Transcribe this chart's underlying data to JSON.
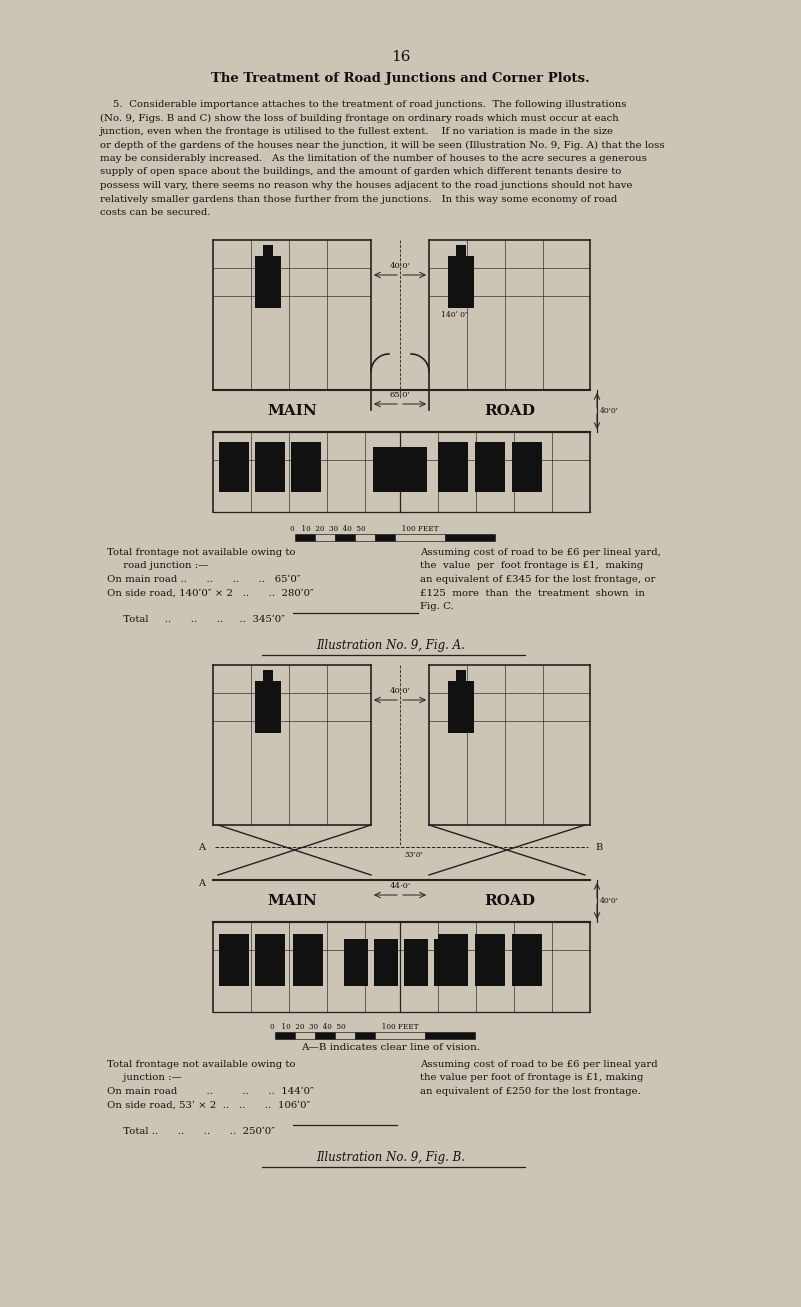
{
  "page_number": "16",
  "title": "The Treatment of Road Junctions and Corner Plots.",
  "body_text": "    5.  Considerable importance attaches to the treatment of road junctions.  The following illustrations\n(No. 9, Figs. B and C) show the loss of building frontage on ordinary roads which must occur at each\njunction, even when the frontage is utilised to the fullest extent.    If no variation is made in the size\nor depth of the gardens of the houses near the junction, it will be seen (Illustration No. 9, Fig. A) that the loss\nmay be considerably increased.   As the limitation of the number of houses to the acre secures a generous\nsupply of open space about the buildings, and the amount of garden which different tenants desire to\npossess will vary, there seems no reason why the houses adjacent to the road junctions should not have\nrelatively smaller gardens than those further from the junctions.   In this way some economy of road\ncosts can be secured.",
  "bg_color": "#ccc4b4",
  "line_color": "#222222",
  "house_color": "#111111",
  "text_color": "#111111",
  "fig_a_caption": "Illustration No. 9, Fig. A.",
  "fig_b_caption": "Illustration No. 9, Fig. B.",
  "fig_a_text_left_1": "Total frontage not available owing to",
  "fig_a_text_left_2": "     road junction :—",
  "fig_a_text_left_3": "On main road ..      ..      ..      ..   65ʹ0″",
  "fig_a_text_left_4": "On side road, 140ʹ0″ × 2   ..      ..  280ʹ0″",
  "fig_a_text_left_5": "",
  "fig_a_text_left_6": "     Total     ..      ..      ..     ..  345ʹ0″",
  "fig_a_text_right_1": "Assuming cost of road to be £6 per lineal yard,",
  "fig_a_text_right_2": "the  value  per  foot frontage is £1,  making",
  "fig_a_text_right_3": "an equivalent of £345 for the lost frontage, or",
  "fig_a_text_right_4": "£125  more  than  the  treatment  shown  in",
  "fig_a_text_right_5": "Fig. C.",
  "fig_b_text_left_1": "Total frontage not available owing to",
  "fig_b_text_left_2": "     junction :—",
  "fig_b_text_left_3": "On main road         ..         ..      ..  144ʹ0″",
  "fig_b_text_left_4": "On side road, 53ʹ × 2  ..   ..      ..  106ʹ0″",
  "fig_b_text_left_5": "",
  "fig_b_text_left_6": "     Total ..      ..      ..      ..  250ʹ0″",
  "fig_b_text_right_1": "Assuming cost of road to be £6 per lineal yard",
  "fig_b_text_right_2": "the value per foot of frontage is £1, making",
  "fig_b_text_right_3": "an equivalent of £250 for the lost frontage.",
  "ab_label": "A—B indicates clear line of vision.",
  "scale_label": "0   10  20  30  40  50                100 FEET"
}
